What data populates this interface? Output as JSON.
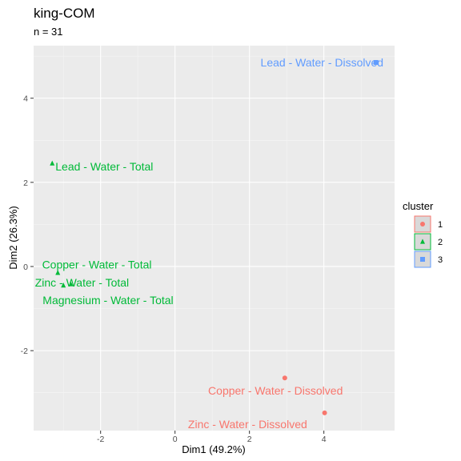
{
  "chart_data": {
    "type": "scatter",
    "title": "king-COM",
    "subtitle": "n = 31",
    "xlabel": "Dim1 (49.2%)",
    "ylabel": "Dim2 (26.3%)",
    "xlim": [
      -3.8,
      5.9
    ],
    "ylim": [
      -3.9,
      5.25
    ],
    "xticks": [
      -2,
      0,
      2,
      4
    ],
    "yticks": [
      -2,
      0,
      2,
      4
    ],
    "grid": true,
    "legend": {
      "title": "cluster",
      "placement": "right",
      "entries": [
        {
          "name": "1",
          "color": "#F8766D",
          "shape": "circle"
        },
        {
          "name": "2",
          "color": "#00BA38",
          "shape": "triangle"
        },
        {
          "name": "3",
          "color": "#619CFF",
          "shape": "square"
        }
      ]
    },
    "points": [
      {
        "label": "Lead - Water - Dissolved",
        "x": 5.4,
        "y": 4.85,
        "cluster": "3",
        "lx": 3.95,
        "ly": 4.85
      },
      {
        "label": "Lead - Water - Total",
        "x": -3.3,
        "y": 2.45,
        "cluster": "2",
        "lx": -1.9,
        "ly": 2.38
      },
      {
        "label": "Copper - Water - Total",
        "x": -3.15,
        "y": -0.15,
        "cluster": "2",
        "lx": -2.1,
        "ly": 0.05
      },
      {
        "label": "Zinc - Water - Total",
        "x": -3.0,
        "y": -0.45,
        "cluster": "2",
        "lx": -2.5,
        "ly": -0.38
      },
      {
        "label": "Magnesium - Water - Total",
        "x": -2.8,
        "y": -0.42,
        "cluster": "2",
        "lx": -1.8,
        "ly": -0.8
      },
      {
        "label": "Copper - Water - Dissolved",
        "x": 2.95,
        "y": -2.65,
        "cluster": "1",
        "lx": 2.7,
        "ly": -2.95
      },
      {
        "label": "Zinc - Water - Dissolved",
        "x": 4.02,
        "y": -3.48,
        "cluster": "1",
        "lx": 1.95,
        "ly": -3.75
      }
    ]
  }
}
